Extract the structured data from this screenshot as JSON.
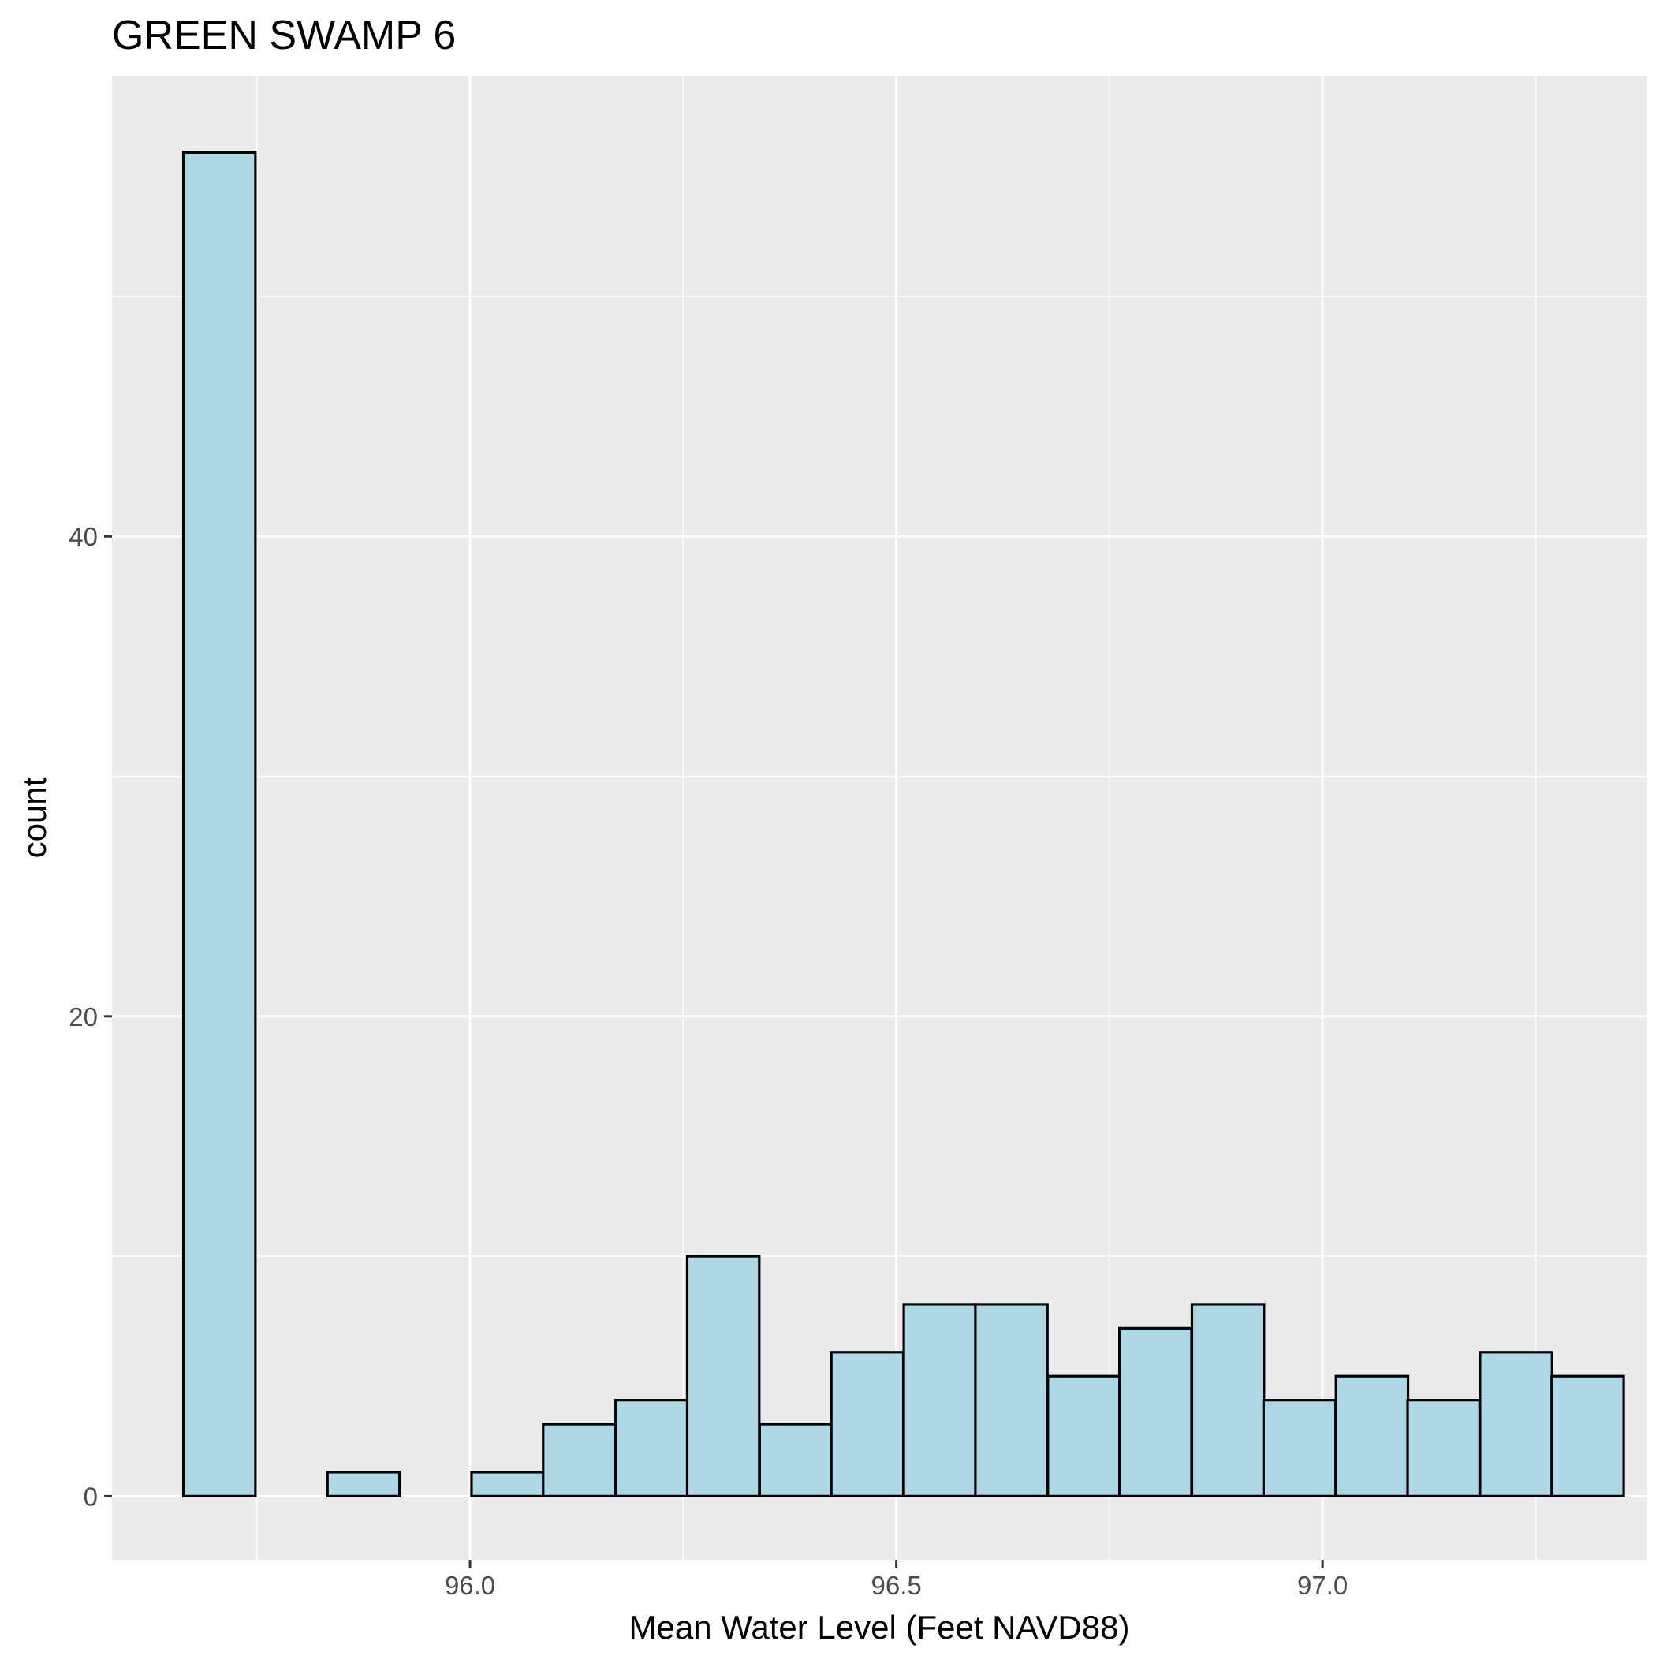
{
  "chart_data": {
    "type": "bar",
    "title": "GREEN SWAMP 6",
    "xlabel": "Mean Water Level (Feet NAVD88)",
    "ylabel": "count",
    "xlim": [
      95.58,
      97.38
    ],
    "ylim": [
      -2.65,
      59.2
    ],
    "x_ticks": [
      {
        "value": 96.0,
        "label": "96.0"
      },
      {
        "value": 96.5,
        "label": "96.5"
      },
      {
        "value": 97.0,
        "label": "97.0"
      }
    ],
    "x_minor_ticks": [
      95.75,
      96.25,
      96.75,
      97.25
    ],
    "y_ticks": [
      {
        "value": 0,
        "label": "0"
      },
      {
        "value": 20,
        "label": "20"
      },
      {
        "value": 40,
        "label": "40"
      }
    ],
    "y_minor_ticks": [
      10,
      30,
      50
    ],
    "bin_width": 0.0845,
    "bins": [
      {
        "x": 95.706,
        "count": 56
      },
      {
        "x": 95.79,
        "count": 0
      },
      {
        "x": 95.875,
        "count": 1
      },
      {
        "x": 95.959,
        "count": 0
      },
      {
        "x": 96.044,
        "count": 1
      },
      {
        "x": 96.128,
        "count": 3
      },
      {
        "x": 96.213,
        "count": 4
      },
      {
        "x": 96.297,
        "count": 10
      },
      {
        "x": 96.382,
        "count": 3
      },
      {
        "x": 96.466,
        "count": 6
      },
      {
        "x": 96.551,
        "count": 8
      },
      {
        "x": 96.635,
        "count": 8
      },
      {
        "x": 96.72,
        "count": 5
      },
      {
        "x": 96.804,
        "count": 7
      },
      {
        "x": 96.889,
        "count": 8
      },
      {
        "x": 96.973,
        "count": 4
      },
      {
        "x": 97.058,
        "count": 5
      },
      {
        "x": 97.142,
        "count": 4
      },
      {
        "x": 97.227,
        "count": 6
      },
      {
        "x": 97.311,
        "count": 5
      }
    ],
    "bar_fill": "#add8e6",
    "bar_outline": "#000000",
    "panel_background": "#ebebeb",
    "grid_color": "#ffffff",
    "grid": true,
    "legend": "none"
  }
}
